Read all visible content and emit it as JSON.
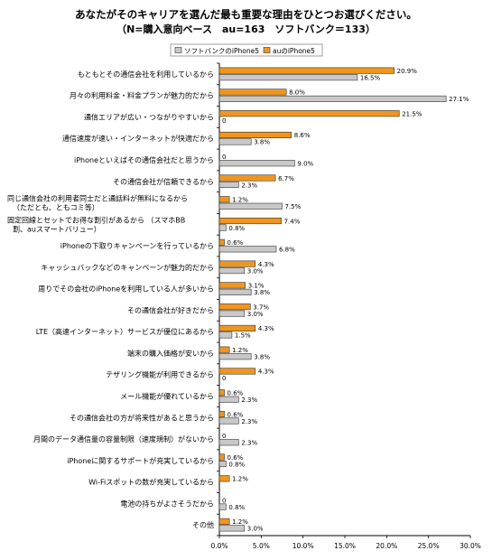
{
  "title_line1": "あなたがそのキャリアを選んだ最も重要な理由をひとつお選びください。",
  "title_line2": "（N=購入意向ベース　au=163　ソフトバンク＝133）",
  "colors": {
    "softbank": "#c8c8c8",
    "au": "#f0961e",
    "stroke": "#333333",
    "axis": "#000000"
  },
  "chart_data": {
    "type": "bar",
    "orientation": "horizontal",
    "categories": [
      "もともとその通信会社を利用しているから",
      "月々の利用料金・料金プランが魅力的だから",
      "通信エリアが広い・つながりやすいから",
      "通信速度が速い・インターネットが快適だから",
      "iPhoneといえばその通信会社だと思うから",
      "その通信会社が信頼できるから",
      "同じ通信会社の利用者同士だと通話料が無料になるから\n（ただとも、ともコミ等）",
      "固定回線とセットでお得な割引があるから （スマホBB\n割、auスマートバリュー）",
      "iPhoneの下取りキャンペーンを行っているから",
      "キャッシュバックなどのキャンペーンが魅力的だから",
      "周りでその会社のiPhoneを利用している人が多いから",
      "その通信会社が好きだから",
      "LTE（高速インターネット）サービスが優位にあるから",
      "端末の購入価格が安いから",
      "テザリング機能が利用できるから",
      "メール機能が優れているから",
      "その通信会社の方が将来性があると思うから",
      "月間のデータ通信量の容量制限（速度規制）がないから",
      "iPhoneに関するサポートが充実しているから",
      "Wi-Fiスポットの数が充実しているから",
      "電池の持ちがよさそうだから",
      "その他"
    ],
    "series": [
      {
        "name": "ソフトバンクのiPhone5",
        "values": [
          16.5,
          27.1,
          0,
          3.8,
          9.0,
          2.3,
          7.5,
          0.8,
          6.8,
          3.0,
          3.8,
          3.0,
          1.5,
          3.8,
          0,
          2.3,
          2.3,
          2.3,
          0.8,
          0,
          0.8,
          3.0
        ],
        "labels": [
          "16.5%",
          "27.1%",
          "0",
          "3.8%",
          "9.0%",
          "2.3%",
          "7.5%",
          "0.8%",
          "6.8%",
          "3.0%",
          "3.8%",
          "3.0%",
          "1.5%",
          "3.8%",
          "0",
          "2.3%",
          "2.3%",
          "2.3%",
          "0.8%",
          "",
          "0.8%",
          "3.0%"
        ]
      },
      {
        "name": "auのiPhone5",
        "values": [
          20.9,
          8.0,
          21.5,
          8.6,
          0,
          6.7,
          1.2,
          7.4,
          0.6,
          4.3,
          3.1,
          3.7,
          4.3,
          1.2,
          4.3,
          0.6,
          0.6,
          0,
          0.6,
          1.2,
          0,
          1.2
        ],
        "labels": [
          "20.9%",
          "8.0%",
          "21.5%",
          "8.6%",
          "0",
          "6.7%",
          "1.2%",
          "7.4%",
          "0.6%",
          "4.3%",
          "3.1%",
          "3.7%",
          "4.3%",
          "1.2%",
          "4.3%",
          "0.6%",
          "0.6%",
          "0",
          "0.6%",
          "1.2%",
          "0",
          "1.2%"
        ]
      }
    ],
    "xlim": [
      0,
      30
    ],
    "xticks": [
      "0.0%",
      "5.0%",
      "10.0%",
      "15.0%",
      "20.0%",
      "25.0%",
      "30.0%"
    ],
    "legend_position": "top-left",
    "grid": false
  }
}
